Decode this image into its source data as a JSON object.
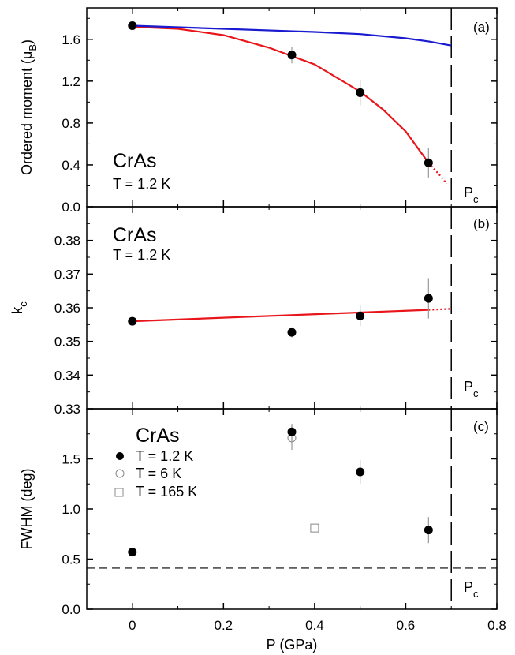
{
  "figure": {
    "xlabel": "P (GPa)",
    "x_ticks": [
      "0",
      "0.2",
      "0.4",
      "0.6",
      "0.8"
    ],
    "xlim": [
      -0.1,
      0.8
    ]
  },
  "chart_data": [
    {
      "type": "scatter",
      "panel": "(a)",
      "title": "CrAs",
      "subtitle": "T = 1.2 K",
      "ylabel": "Ordered moment (μ",
      "ylabel_sub": "B",
      "ylabel_close": ")",
      "ylim": [
        0,
        1.9
      ],
      "y_ticks": [
        "0.0",
        "0.4",
        "0.8",
        "1.2",
        "1.6"
      ],
      "points": [
        {
          "x": 0,
          "y": 1.73,
          "err": 0.03
        },
        {
          "x": 0.35,
          "y": 1.45,
          "err": 0.08
        },
        {
          "x": 0.5,
          "y": 1.09,
          "err": 0.12
        },
        {
          "x": 0.65,
          "y": 0.42,
          "err": 0.14
        }
      ],
      "fits": [
        {
          "color": "#e8161b",
          "style": "solid",
          "x": [
            0,
            0.1,
            0.2,
            0.3,
            0.35,
            0.4,
            0.5,
            0.55,
            0.6,
            0.65
          ],
          "y": [
            1.72,
            1.7,
            1.64,
            1.52,
            1.44,
            1.36,
            1.1,
            0.93,
            0.72,
            0.42
          ]
        },
        {
          "color": "#e8161b",
          "style": "dotted",
          "x": [
            0.65,
            0.675,
            0.69
          ],
          "y": [
            0.42,
            0.3,
            0.22
          ]
        },
        {
          "color": "#1a1ad0",
          "style": "solid",
          "x": [
            0,
            0.2,
            0.4,
            0.5,
            0.6,
            0.65,
            0.7
          ],
          "y": [
            1.73,
            1.7,
            1.67,
            1.65,
            1.61,
            1.58,
            1.54
          ]
        }
      ],
      "pc_line": 0.7,
      "pc_label": "P",
      "pc_sub": "c"
    },
    {
      "type": "scatter",
      "panel": "(b)",
      "title": "CrAs",
      "subtitle": "T = 1.2 K",
      "ylabel": "k",
      "ylabel_sub": "c",
      "ylim": [
        0.33,
        0.39
      ],
      "y_ticks": [
        "0.33",
        "0.34",
        "0.35",
        "0.36",
        "0.37",
        "0.38"
      ],
      "points": [
        {
          "x": 0,
          "y": 0.356,
          "err": 0.0
        },
        {
          "x": 0.35,
          "y": 0.3527,
          "err": 0.0015
        },
        {
          "x": 0.5,
          "y": 0.3576,
          "err": 0.003
        },
        {
          "x": 0.65,
          "y": 0.3628,
          "err": 0.006
        }
      ],
      "fits": [
        {
          "color": "#e8161b",
          "style": "solid",
          "x": [
            0,
            0.65
          ],
          "y": [
            0.356,
            0.3594
          ]
        },
        {
          "color": "#e8161b",
          "style": "dotted",
          "x": [
            0.65,
            0.7
          ],
          "y": [
            0.3594,
            0.3597
          ]
        }
      ],
      "pc_line": 0.7,
      "pc_label": "P",
      "pc_sub": "c"
    },
    {
      "type": "scatter",
      "panel": "(c)",
      "title": "CrAs",
      "ylabel": "FWHM (deg)",
      "ylim": [
        0,
        2.0
      ],
      "y_ticks": [
        "0.0",
        "0.5",
        "1.0",
        "1.5"
      ],
      "series": [
        {
          "name": "T = 1.2 K",
          "marker": "filled-circle",
          "points": [
            {
              "x": 0,
              "y": 0.57,
              "err": 0.0
            },
            {
              "x": 0.35,
              "y": 1.77,
              "err": 0.08
            },
            {
              "x": 0.5,
              "y": 1.37,
              "err": 0.12
            },
            {
              "x": 0.65,
              "y": 0.79,
              "err": 0.13
            }
          ]
        },
        {
          "name": "T = 6 K",
          "marker": "open-circle",
          "points": [
            {
              "x": 0.35,
              "y": 1.71,
              "err": 0.12
            }
          ]
        },
        {
          "name": "T = 165 K",
          "marker": "open-square",
          "points": [
            {
              "x": 0.4,
              "y": 0.81,
              "err": 0.0
            }
          ]
        }
      ],
      "hline": 0.41,
      "pc_line": 0.7,
      "pc_label": "P",
      "pc_sub": "c"
    }
  ]
}
